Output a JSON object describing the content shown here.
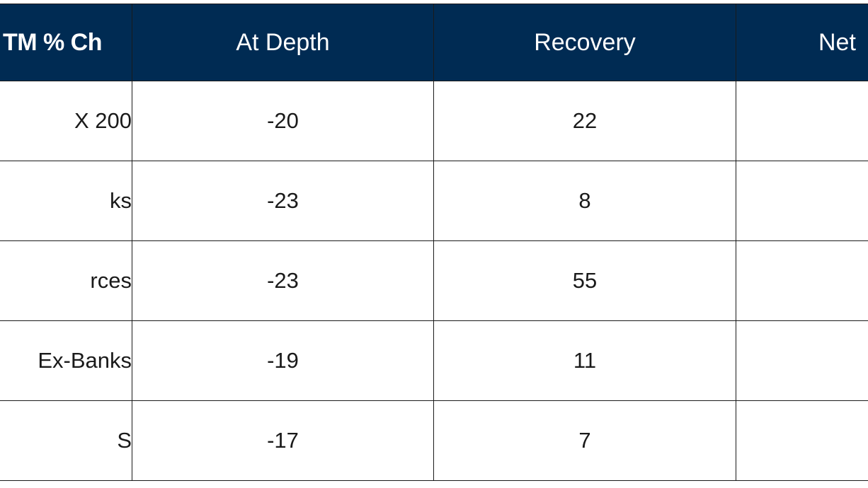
{
  "table": {
    "headers": [
      "TM % Ch",
      "At Depth",
      "Recovery",
      "Net"
    ],
    "rows": [
      {
        "label": "X 200",
        "at_depth": "-20",
        "recovery": "22",
        "net": ""
      },
      {
        "label": "ks",
        "at_depth": "-23",
        "recovery": "8",
        "net": ""
      },
      {
        "label": "rces",
        "at_depth": "-23",
        "recovery": "55",
        "net": ""
      },
      {
        "label": "Ex-Banks",
        "at_depth": "-19",
        "recovery": "11",
        "net": ""
      },
      {
        "label": "S",
        "at_depth": "-17",
        "recovery": "7",
        "net": ""
      }
    ]
  },
  "colors": {
    "header_background": "#002b53",
    "header_text": "#ffffff",
    "border": "#1a1a1a",
    "cell_text": "#1a1a1a"
  }
}
